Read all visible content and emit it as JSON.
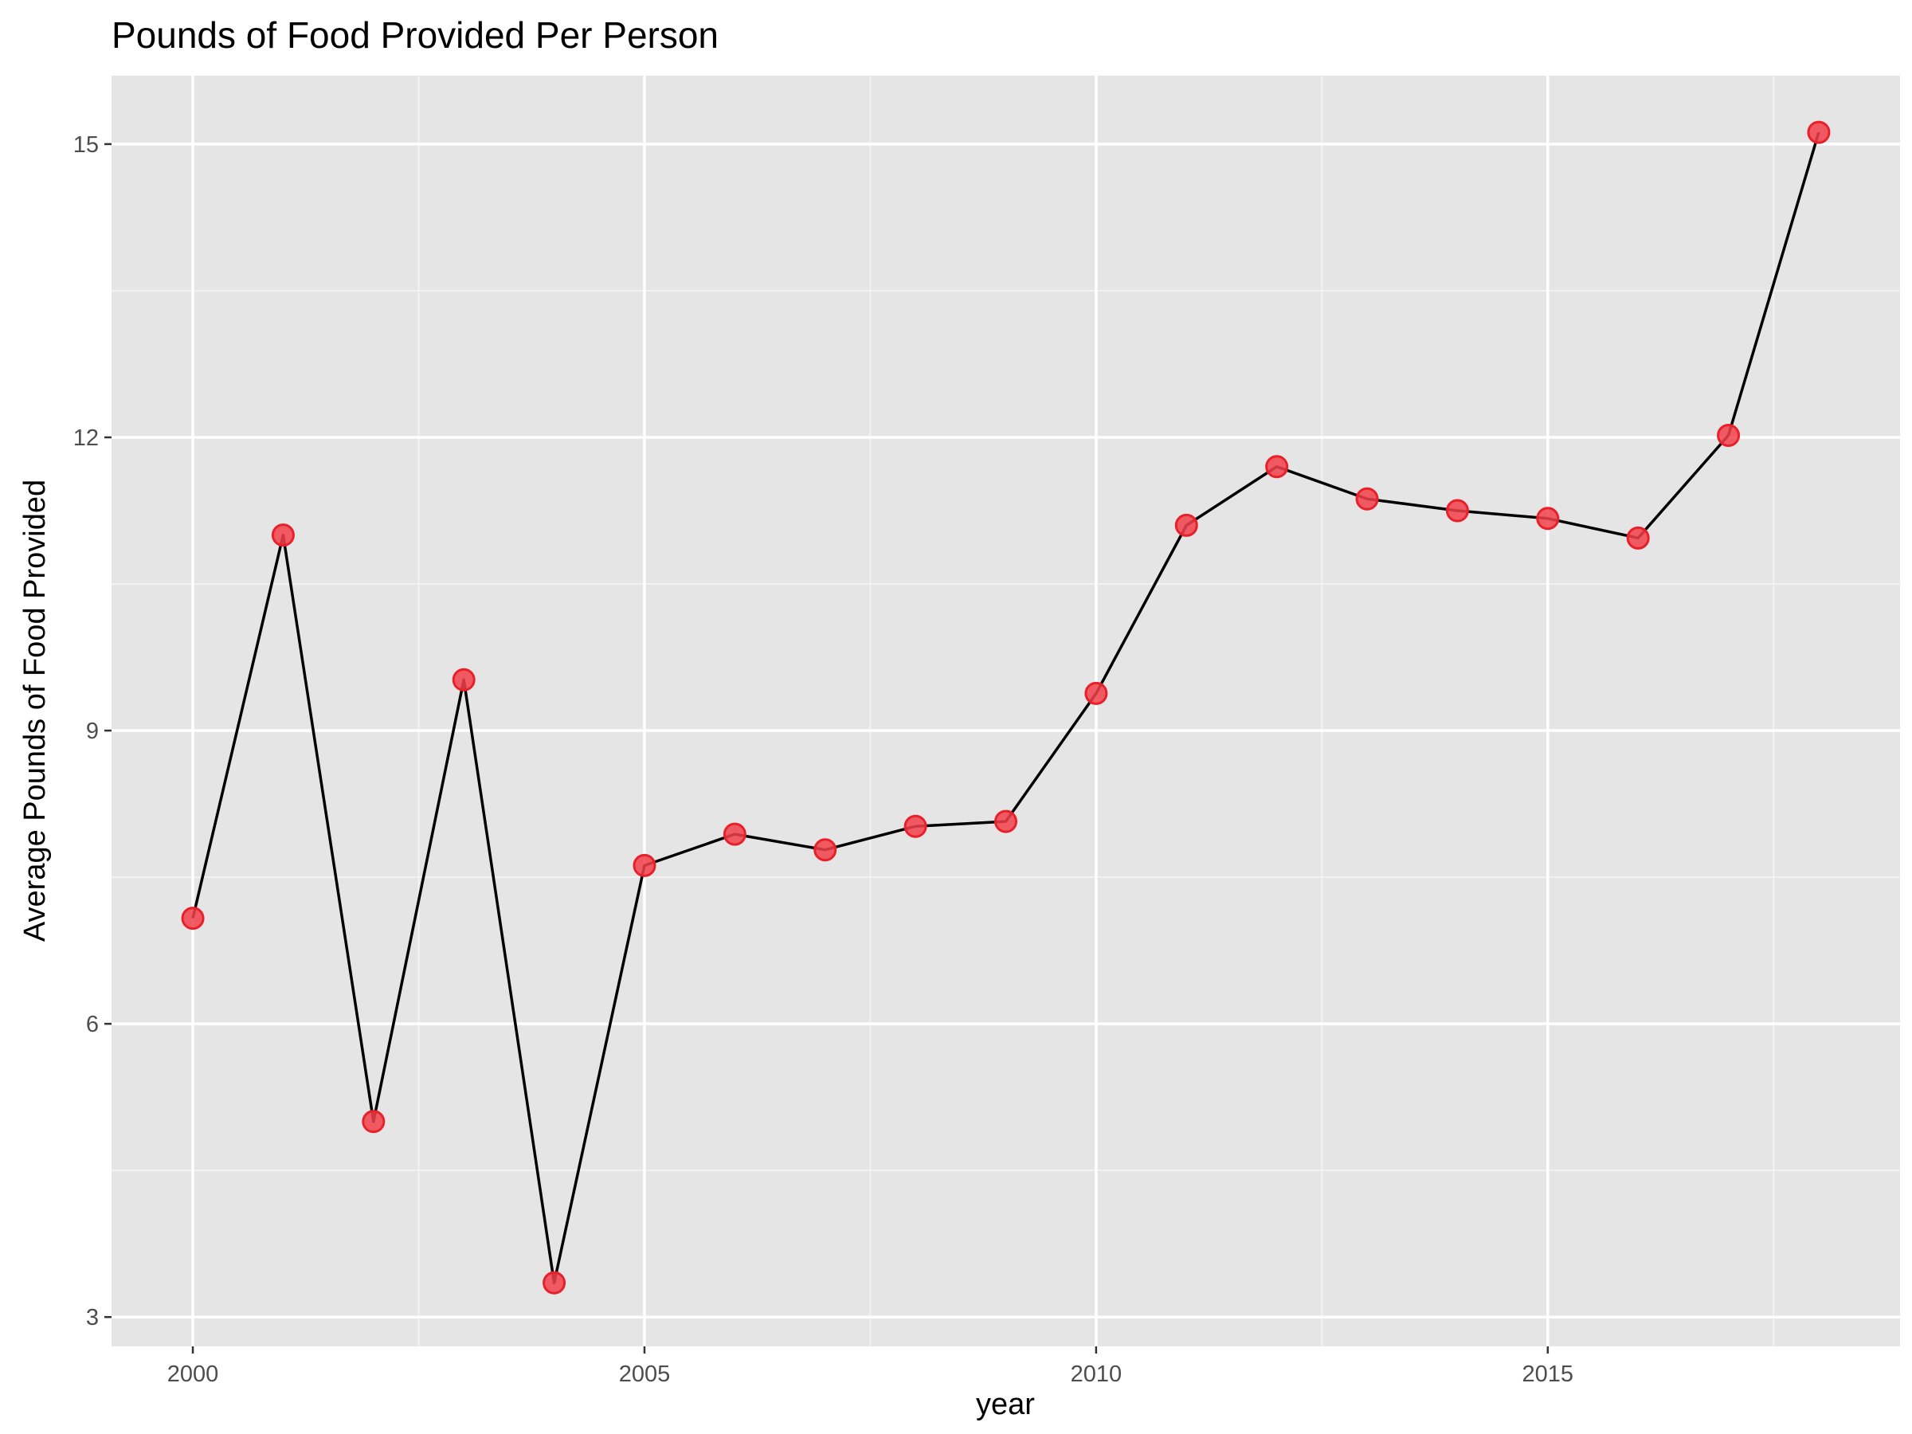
{
  "chart_data": {
    "type": "line",
    "title": "Pounds of Food Provided Per Person",
    "xlabel": "year",
    "ylabel": "Average Pounds of Food Provided",
    "x": [
      2000,
      2001,
      2002,
      2003,
      2004,
      2005,
      2006,
      2007,
      2008,
      2009,
      2010,
      2011,
      2012,
      2013,
      2014,
      2015,
      2016,
      2017,
      2018
    ],
    "series": [
      {
        "values": [
          7.08,
          11.0,
          5.0,
          9.52,
          3.35,
          7.62,
          7.94,
          7.78,
          8.02,
          8.07,
          9.38,
          11.1,
          11.7,
          11.37,
          11.25,
          11.17,
          10.97,
          12.02,
          15.12
        ]
      }
    ],
    "xlim": [
      1999.1,
      2018.9
    ],
    "ylim": [
      2.7,
      15.7
    ],
    "x_ticks": [
      2000,
      2005,
      2010,
      2015
    ],
    "x_tick_labels": [
      "2000",
      "2005",
      "2010",
      "2015"
    ],
    "y_ticks": [
      3,
      6,
      9,
      12,
      15
    ],
    "y_tick_labels": [
      "3",
      "6",
      "9",
      "12",
      "15"
    ],
    "x_minor_ticks": [
      2002.5,
      2007.5,
      2012.5,
      2017.5
    ],
    "y_minor_ticks": [
      4.5,
      7.5,
      10.5,
      13.5
    ],
    "grid": true,
    "legend": "none",
    "colors": {
      "panel_background": "#e5e5e5",
      "grid_major": "#ffffff",
      "grid_minor": "#f2f2f2",
      "line": "#000000",
      "point_fill": "#f2414a",
      "point_stroke": "#e8202a",
      "tick_label": "#4d4d4d",
      "tick_mark": "#333333"
    }
  }
}
